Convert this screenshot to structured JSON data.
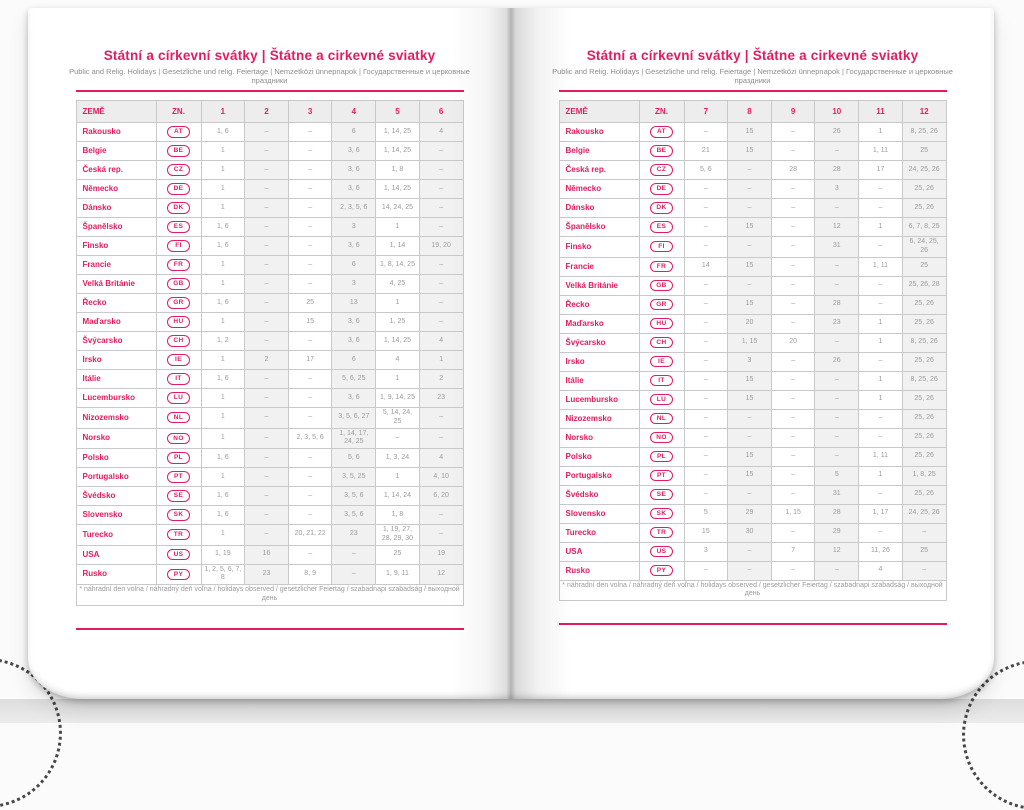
{
  "header": {
    "title": "Státní a církevní svátky | Štátne a cirkevné sviatky",
    "subtitle": "Public and Relig. Holidays | Gesetzliche und relig. Feiertage | Nemzetközi ünnepnapok | Государственные и церковные праздники"
  },
  "table": {
    "country_header": "ZEMĚ",
    "code_header": "ZN.",
    "footnote": "* náhradní den volna / náhradný deň voľna / holidays observed / gesetzlicher Feiertag / szabadnapi szabadság / выходной день"
  },
  "colors": {
    "accent_pink": "#e31c5e",
    "cell_text_gray": "#9b9b9b",
    "alt_cell_bg": "#f1f1f1",
    "header_bg": "#ededed",
    "border_gray": "#c9c9c9"
  },
  "pages": [
    {
      "side": "left",
      "month_headers": [
        "1",
        "2",
        "3",
        "4",
        "5",
        "6"
      ],
      "rows": [
        {
          "country": "Rakousko",
          "code": "AT",
          "values": [
            "1, 6",
            "–",
            "–",
            "6",
            "1, 14, 25",
            "4"
          ]
        },
        {
          "country": "Belgie",
          "code": "BE",
          "values": [
            "1",
            "–",
            "–",
            "3, 6",
            "1, 14, 25",
            "–"
          ]
        },
        {
          "country": "Česká rep.",
          "code": "CZ",
          "values": [
            "1",
            "–",
            "–",
            "3, 6",
            "1, 8",
            "–"
          ]
        },
        {
          "country": "Německo",
          "code": "DE",
          "values": [
            "1",
            "–",
            "–",
            "3, 6",
            "1, 14, 25",
            "–"
          ]
        },
        {
          "country": "Dánsko",
          "code": "DK",
          "values": [
            "1",
            "–",
            "–",
            "2, 3, 5, 6",
            "14, 24, 25",
            "–"
          ]
        },
        {
          "country": "Španělsko",
          "code": "ES",
          "values": [
            "1, 6",
            "–",
            "–",
            "3",
            "1",
            "–"
          ]
        },
        {
          "country": "Finsko",
          "code": "FI",
          "values": [
            "1, 6",
            "–",
            "–",
            "3, 6",
            "1, 14",
            "19, 20"
          ]
        },
        {
          "country": "Francie",
          "code": "FR",
          "values": [
            "1",
            "–",
            "–",
            "6",
            "1, 8, 14, 25",
            "–"
          ]
        },
        {
          "country": "Velká Británie",
          "code": "GB",
          "values": [
            "1",
            "–",
            "–",
            "3",
            "4, 25",
            "–"
          ]
        },
        {
          "country": "Řecko",
          "code": "GR",
          "values": [
            "1, 6",
            "–",
            "25",
            "13",
            "1",
            "–"
          ]
        },
        {
          "country": "Maďarsko",
          "code": "HU",
          "values": [
            "1",
            "–",
            "15",
            "3, 6",
            "1, 25",
            "–"
          ]
        },
        {
          "country": "Švýcarsko",
          "code": "CH",
          "values": [
            "1, 2",
            "–",
            "–",
            "3, 6",
            "1, 14, 25",
            "4"
          ]
        },
        {
          "country": "Irsko",
          "code": "IE",
          "values": [
            "1",
            "2",
            "17",
            "6",
            "4",
            "1"
          ]
        },
        {
          "country": "Itálie",
          "code": "IT",
          "values": [
            "1, 6",
            "–",
            "–",
            "5, 6, 25",
            "1",
            "2"
          ]
        },
        {
          "country": "Lucembursko",
          "code": "LU",
          "values": [
            "1",
            "–",
            "–",
            "3, 6",
            "1, 9, 14, 25",
            "23"
          ]
        },
        {
          "country": "Nizozemsko",
          "code": "NL",
          "values": [
            "1",
            "–",
            "–",
            "3, 5, 6, 27",
            "5, 14, 24, 25",
            "–"
          ]
        },
        {
          "country": "Norsko",
          "code": "NO",
          "values": [
            "1",
            "–",
            "2, 3, 5, 6",
            "1, 14, 17, 24, 25",
            "–",
            "–"
          ]
        },
        {
          "country": "Polsko",
          "code": "PL",
          "values": [
            "1, 6",
            "–",
            "–",
            "5, 6",
            "1, 3, 24",
            "4"
          ]
        },
        {
          "country": "Portugalsko",
          "code": "PT",
          "values": [
            "1",
            "–",
            "–",
            "3, 5, 25",
            "1",
            "4, 10"
          ]
        },
        {
          "country": "Švédsko",
          "code": "SE",
          "values": [
            "1, 6",
            "–",
            "–",
            "3, 5, 6",
            "1, 14, 24",
            "6, 20"
          ]
        },
        {
          "country": "Slovensko",
          "code": "SK",
          "values": [
            "1, 6",
            "–",
            "–",
            "3, 5, 6",
            "1, 8",
            "–"
          ]
        },
        {
          "country": "Turecko",
          "code": "TR",
          "values": [
            "1",
            "–",
            "20, 21, 22",
            "23",
            "1, 19, 27, 28, 29, 30",
            "–"
          ]
        },
        {
          "country": "USA",
          "code": "US",
          "values": [
            "1, 19",
            "16",
            "–",
            "–",
            "25",
            "19"
          ]
        },
        {
          "country": "Rusko",
          "code": "PY",
          "values": [
            "1, 2, 5, 6, 7, 8",
            "23",
            "8, 9",
            "–",
            "1, 9, 11",
            "12"
          ]
        }
      ]
    },
    {
      "side": "right",
      "month_headers": [
        "7",
        "8",
        "9",
        "10",
        "11",
        "12"
      ],
      "rows": [
        {
          "country": "Rakousko",
          "code": "AT",
          "values": [
            "–",
            "15",
            "–",
            "26",
            "1",
            "8, 25, 26"
          ]
        },
        {
          "country": "Belgie",
          "code": "BE",
          "values": [
            "21",
            "15",
            "–",
            "–",
            "1, 11",
            "25"
          ]
        },
        {
          "country": "Česká rep.",
          "code": "CZ",
          "values": [
            "5, 6",
            "–",
            "28",
            "28",
            "17",
            "24, 25, 26"
          ]
        },
        {
          "country": "Německo",
          "code": "DE",
          "values": [
            "–",
            "–",
            "–",
            "3",
            "–",
            "25, 26"
          ]
        },
        {
          "country": "Dánsko",
          "code": "DK",
          "values": [
            "–",
            "–",
            "–",
            "–",
            "–",
            "25, 26"
          ]
        },
        {
          "country": "Španělsko",
          "code": "ES",
          "values": [
            "–",
            "15",
            "–",
            "12",
            "1",
            "6, 7, 8, 25"
          ]
        },
        {
          "country": "Finsko",
          "code": "FI",
          "values": [
            "–",
            "–",
            "–",
            "31",
            "–",
            "6, 24, 25, 26"
          ]
        },
        {
          "country": "Francie",
          "code": "FR",
          "values": [
            "14",
            "15",
            "–",
            "–",
            "1, 11",
            "25"
          ]
        },
        {
          "country": "Velká Británie",
          "code": "GB",
          "values": [
            "–",
            "–",
            "–",
            "–",
            "–",
            "25, 26, 28"
          ]
        },
        {
          "country": "Řecko",
          "code": "GR",
          "values": [
            "–",
            "15",
            "–",
            "28",
            "–",
            "25, 26"
          ]
        },
        {
          "country": "Maďarsko",
          "code": "HU",
          "values": [
            "–",
            "20",
            "–",
            "23",
            "1",
            "25, 26"
          ]
        },
        {
          "country": "Švýcarsko",
          "code": "CH",
          "values": [
            "–",
            "1, 15",
            "20",
            "–",
            "1",
            "8, 25, 26"
          ]
        },
        {
          "country": "Irsko",
          "code": "IE",
          "values": [
            "–",
            "3",
            "–",
            "26",
            "–",
            "25, 26"
          ]
        },
        {
          "country": "Itálie",
          "code": "IT",
          "values": [
            "–",
            "15",
            "–",
            "–",
            "1",
            "8, 25, 26"
          ]
        },
        {
          "country": "Lucembursko",
          "code": "LU",
          "values": [
            "–",
            "15",
            "–",
            "–",
            "1",
            "25, 26"
          ]
        },
        {
          "country": "Nizozemsko",
          "code": "NL",
          "values": [
            "–",
            "–",
            "–",
            "–",
            "–",
            "25, 26"
          ]
        },
        {
          "country": "Norsko",
          "code": "NO",
          "values": [
            "–",
            "–",
            "–",
            "–",
            "–",
            "25, 26"
          ]
        },
        {
          "country": "Polsko",
          "code": "PL",
          "values": [
            "–",
            "15",
            "–",
            "–",
            "1, 11",
            "25, 26"
          ]
        },
        {
          "country": "Portugalsko",
          "code": "PT",
          "values": [
            "–",
            "15",
            "–",
            "5",
            "1",
            "1, 8, 25"
          ]
        },
        {
          "country": "Švédsko",
          "code": "SE",
          "values": [
            "–",
            "–",
            "–",
            "31",
            "–",
            "25, 26"
          ]
        },
        {
          "country": "Slovensko",
          "code": "SK",
          "values": [
            "5",
            "29",
            "1, 15",
            "28",
            "1, 17",
            "24, 25, 26"
          ]
        },
        {
          "country": "Turecko",
          "code": "TR",
          "values": [
            "15",
            "30",
            "–",
            "29",
            "–",
            "–"
          ]
        },
        {
          "country": "USA",
          "code": "US",
          "values": [
            "3",
            "–",
            "7",
            "12",
            "11, 26",
            "25"
          ]
        },
        {
          "country": "Rusko",
          "code": "PY",
          "values": [
            "–",
            "–",
            "–",
            "–",
            "4",
            "–"
          ]
        }
      ]
    }
  ]
}
